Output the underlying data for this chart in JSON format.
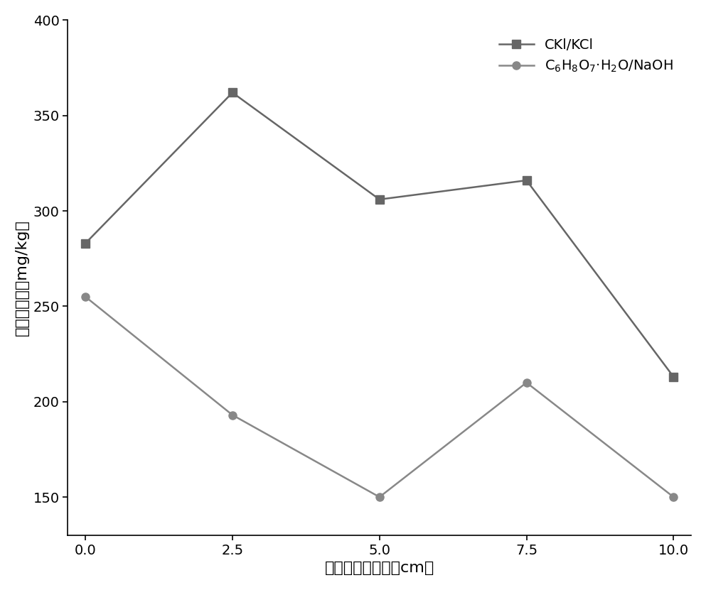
{
  "x": [
    0.0,
    2.5,
    5.0,
    7.5,
    10.0
  ],
  "series1_values": [
    283,
    362,
    306,
    316,
    213
  ],
  "series2_values": [
    255,
    193,
    150,
    210,
    150
  ],
  "series1_label": "CKl/KCl",
  "series2_label": "C$_6$H$_8$O$_7$·H$_2$O/NaOH",
  "series1_color": "#666666",
  "series2_color": "#888888",
  "series1_marker": "s",
  "series2_marker": "o",
  "xlabel": "距离阳极的距离（cm）",
  "ylabel": "总祉残余量（mg/kg）",
  "ylim": [
    130,
    400
  ],
  "xlim": [
    -0.3,
    10.3
  ],
  "yticks": [
    150,
    200,
    250,
    300,
    350,
    400
  ],
  "xticks": [
    0.0,
    2.5,
    5.0,
    7.5,
    10.0
  ],
  "linewidth": 1.8,
  "markersize": 8,
  "title_fontsize": 13,
  "axis_fontsize": 16,
  "tick_fontsize": 14,
  "legend_fontsize": 14
}
